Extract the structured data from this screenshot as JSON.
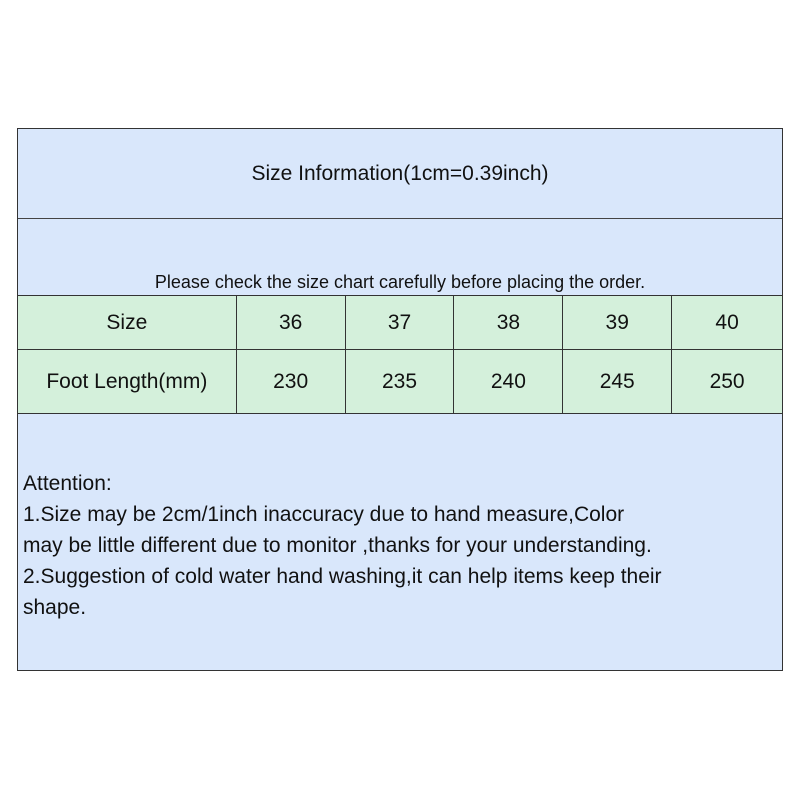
{
  "title": "Size Information(1cm=0.39inch)",
  "note": "Please check the size chart carefully before placing the order.",
  "table": {
    "rows": [
      {
        "label": "Size",
        "values": [
          "36",
          "37",
          "38",
          "39",
          "40"
        ]
      },
      {
        "label": "Foot Length(mm)",
        "values": [
          "230",
          "235",
          "240",
          "245",
          "250"
        ]
      }
    ]
  },
  "attention": {
    "heading": "Attention:",
    "lines": [
      "1.Size may be 2cm/1inch inaccuracy due to hand measure,Color\nmay be little different due to monitor ,thanks for your understanding.",
      "2.Suggestion of cold water hand washing,it can help items keep their\nshape."
    ]
  },
  "colors": {
    "header_bg": "#d9e7fb",
    "table_bg": "#d4f0db",
    "border": "#333333"
  }
}
